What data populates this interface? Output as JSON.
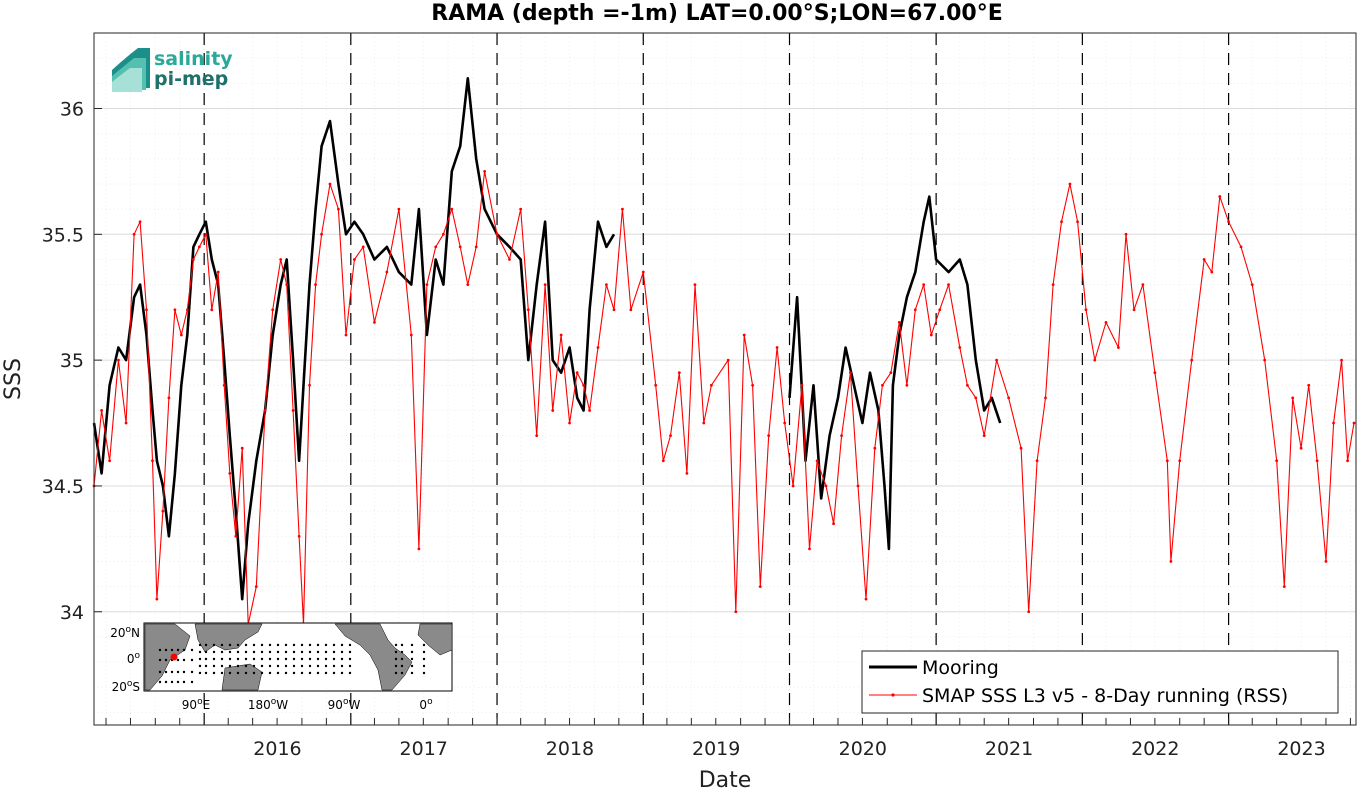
{
  "chart_data": {
    "type": "line",
    "title": "RAMA (depth =-1m) LAT=0.00°S;LON=67.00°E",
    "xlabel": "Date",
    "ylabel": "SSS",
    "xlim": [
      "2015-04-01",
      "2023-11-15"
    ],
    "ylim": [
      33.55,
      36.3
    ],
    "grid": true,
    "legend_position": "bottom-right",
    "x_ticks": [
      "2016",
      "2017",
      "2018",
      "2019",
      "2020",
      "2021",
      "2022",
      "2023"
    ],
    "y_ticks": [
      {
        "value": 34,
        "label": "34"
      },
      {
        "value": 34.5,
        "label": "34.5"
      },
      {
        "value": 35,
        "label": "35"
      },
      {
        "value": 35.5,
        "label": "35.5"
      },
      {
        "value": 36,
        "label": "36"
      }
    ],
    "year_boundaries": [
      "2016-01-01",
      "2017-01-01",
      "2018-01-01",
      "2019-01-01",
      "2020-01-01",
      "2021-01-01",
      "2022-01-01",
      "2023-01-01"
    ],
    "series": [
      {
        "name": "Mooring",
        "color": "#000000",
        "points": [
          [
            "2015-04-01",
            34.75
          ],
          [
            "2015-04-20",
            34.55
          ],
          [
            "2015-05-10",
            34.9
          ],
          [
            "2015-06-01",
            35.05
          ],
          [
            "2015-06-20",
            35.0
          ],
          [
            "2015-07-10",
            35.25
          ],
          [
            "2015-07-25",
            35.3
          ],
          [
            "2015-08-10",
            35.1
          ],
          [
            "2015-08-25",
            34.8
          ],
          [
            "2015-09-05",
            34.6
          ],
          [
            "2015-09-20",
            34.5
          ],
          [
            "2015-10-05",
            34.3
          ],
          [
            "2015-10-20",
            34.55
          ],
          [
            "2015-11-05",
            34.9
          ],
          [
            "2015-11-20",
            35.1
          ],
          [
            "2015-12-05",
            35.45
          ],
          [
            "2015-12-20",
            35.5
          ],
          [
            "2016-01-05",
            35.55
          ],
          [
            "2016-01-20",
            35.4
          ],
          [
            "2016-02-05",
            35.3
          ],
          [
            "2016-02-20",
            35.0
          ],
          [
            "2016-03-05",
            34.7
          ],
          [
            "2016-03-20",
            34.4
          ],
          [
            "2016-04-05",
            34.05
          ],
          [
            "2016-04-20",
            34.35
          ],
          [
            "2016-05-10",
            34.6
          ],
          [
            "2016-06-01",
            34.8
          ],
          [
            "2016-06-20",
            35.1
          ],
          [
            "2016-07-10",
            35.3
          ],
          [
            "2016-07-25",
            35.4
          ],
          [
            "2016-08-10",
            35.0
          ],
          [
            "2016-08-25",
            34.6
          ],
          [
            "2016-09-05",
            34.9
          ],
          [
            "2016-09-20",
            35.3
          ],
          [
            "2016-10-05",
            35.6
          ],
          [
            "2016-10-20",
            35.85
          ],
          [
            "2016-11-10",
            35.95
          ],
          [
            "2016-12-01",
            35.7
          ],
          [
            "2016-12-20",
            35.5
          ],
          [
            "2017-01-10",
            35.55
          ],
          [
            "2017-02-01",
            35.5
          ],
          [
            "2017-03-01",
            35.4
          ],
          [
            "2017-04-01",
            35.45
          ],
          [
            "2017-05-01",
            35.35
          ],
          [
            "2017-06-01",
            35.3
          ],
          [
            "2017-06-20",
            35.6
          ],
          [
            "2017-07-10",
            35.1
          ],
          [
            "2017-08-01",
            35.4
          ],
          [
            "2017-08-20",
            35.3
          ],
          [
            "2017-09-10",
            35.75
          ],
          [
            "2017-10-01",
            35.85
          ],
          [
            "2017-10-20",
            36.12
          ],
          [
            "2017-11-10",
            35.8
          ],
          [
            "2017-12-01",
            35.6
          ],
          [
            "2018-01-01",
            35.5
          ],
          [
            "2018-02-01",
            35.45
          ],
          [
            "2018-03-01",
            35.4
          ],
          [
            "2018-03-20",
            35.0
          ],
          [
            "2018-04-10",
            35.3
          ],
          [
            "2018-05-01",
            35.55
          ],
          [
            "2018-05-20",
            35.0
          ],
          [
            "2018-06-10",
            34.95
          ],
          [
            "2018-07-01",
            35.05
          ],
          [
            "2018-07-20",
            34.85
          ],
          [
            "2018-08-05",
            34.8
          ],
          [
            "2018-08-20",
            35.2
          ],
          [
            "2018-09-10",
            35.55
          ],
          [
            "2018-10-01",
            35.45
          ],
          [
            "2018-10-20",
            35.5
          ],
          [
            "2020-01-01",
            34.85
          ],
          [
            "2020-01-20",
            35.25
          ],
          [
            "2020-02-10",
            34.6
          ],
          [
            "2020-03-01",
            34.9
          ],
          [
            "2020-03-20",
            34.45
          ],
          [
            "2020-04-10",
            34.7
          ],
          [
            "2020-05-01",
            34.85
          ],
          [
            "2020-05-20",
            35.05
          ],
          [
            "2020-06-10",
            34.9
          ],
          [
            "2020-07-01",
            34.75
          ],
          [
            "2020-07-20",
            34.95
          ],
          [
            "2020-08-10",
            34.8
          ],
          [
            "2020-08-25",
            34.5
          ],
          [
            "2020-09-05",
            34.25
          ],
          [
            "2020-09-15",
            34.9
          ],
          [
            "2020-10-01",
            35.1
          ],
          [
            "2020-10-20",
            35.25
          ],
          [
            "2020-11-10",
            35.35
          ],
          [
            "2020-12-01",
            35.55
          ],
          [
            "2020-12-15",
            35.65
          ],
          [
            "2021-01-01",
            35.4
          ],
          [
            "2021-02-01",
            35.35
          ],
          [
            "2021-03-01",
            35.4
          ],
          [
            "2021-03-20",
            35.3
          ],
          [
            "2021-04-10",
            35.0
          ],
          [
            "2021-05-01",
            34.8
          ],
          [
            "2021-05-20",
            34.85
          ],
          [
            "2021-06-10",
            34.75
          ]
        ]
      },
      {
        "name": "SMAP SSS L3 v5 - 8-Day running (RSS)",
        "color": "#ff0000",
        "points": [
          [
            "2015-04-01",
            34.5
          ],
          [
            "2015-04-20",
            34.8
          ],
          [
            "2015-05-10",
            34.6
          ],
          [
            "2015-06-01",
            35.0
          ],
          [
            "2015-06-20",
            34.75
          ],
          [
            "2015-07-10",
            35.5
          ],
          [
            "2015-07-25",
            35.55
          ],
          [
            "2015-08-10",
            35.2
          ],
          [
            "2015-08-25",
            34.6
          ],
          [
            "2015-09-05",
            34.05
          ],
          [
            "2015-09-20",
            34.4
          ],
          [
            "2015-10-05",
            34.85
          ],
          [
            "2015-10-20",
            35.2
          ],
          [
            "2015-11-05",
            35.1
          ],
          [
            "2015-11-20",
            35.2
          ],
          [
            "2015-12-05",
            35.4
          ],
          [
            "2015-12-20",
            35.45
          ],
          [
            "2016-01-05",
            35.5
          ],
          [
            "2016-01-20",
            35.2
          ],
          [
            "2016-02-05",
            35.35
          ],
          [
            "2016-02-20",
            34.9
          ],
          [
            "2016-03-05",
            34.55
          ],
          [
            "2016-03-20",
            34.3
          ],
          [
            "2016-04-05",
            34.65
          ],
          [
            "2016-04-20",
            33.95
          ],
          [
            "2016-05-10",
            34.1
          ],
          [
            "2016-06-01",
            34.8
          ],
          [
            "2016-06-20",
            35.2
          ],
          [
            "2016-07-10",
            35.4
          ],
          [
            "2016-07-25",
            35.3
          ],
          [
            "2016-08-10",
            34.8
          ],
          [
            "2016-08-25",
            34.3
          ],
          [
            "2016-09-05",
            33.95
          ],
          [
            "2016-09-20",
            34.9
          ],
          [
            "2016-10-05",
            35.3
          ],
          [
            "2016-10-20",
            35.5
          ],
          [
            "2016-11-10",
            35.7
          ],
          [
            "2016-12-01",
            35.6
          ],
          [
            "2016-12-20",
            35.1
          ],
          [
            "2017-01-10",
            35.4
          ],
          [
            "2017-02-01",
            35.45
          ],
          [
            "2017-03-01",
            35.15
          ],
          [
            "2017-04-01",
            35.35
          ],
          [
            "2017-05-01",
            35.6
          ],
          [
            "2017-06-01",
            35.1
          ],
          [
            "2017-06-20",
            34.25
          ],
          [
            "2017-07-10",
            35.3
          ],
          [
            "2017-08-01",
            35.45
          ],
          [
            "2017-08-20",
            35.5
          ],
          [
            "2017-09-10",
            35.6
          ],
          [
            "2017-10-01",
            35.45
          ],
          [
            "2017-10-20",
            35.3
          ],
          [
            "2017-11-10",
            35.45
          ],
          [
            "2017-12-01",
            35.75
          ],
          [
            "2018-01-01",
            35.5
          ],
          [
            "2018-02-01",
            35.4
          ],
          [
            "2018-03-01",
            35.6
          ],
          [
            "2018-03-20",
            35.2
          ],
          [
            "2018-04-10",
            34.7
          ],
          [
            "2018-05-01",
            35.3
          ],
          [
            "2018-05-20",
            34.8
          ],
          [
            "2018-06-10",
            35.1
          ],
          [
            "2018-07-01",
            34.75
          ],
          [
            "2018-07-20",
            34.95
          ],
          [
            "2018-08-05",
            34.9
          ],
          [
            "2018-08-20",
            34.8
          ],
          [
            "2018-09-10",
            35.05
          ],
          [
            "2018-10-01",
            35.3
          ],
          [
            "2018-10-20",
            35.2
          ],
          [
            "2018-11-10",
            35.6
          ],
          [
            "2018-12-01",
            35.2
          ],
          [
            "2019-01-01",
            35.35
          ],
          [
            "2019-02-01",
            34.9
          ],
          [
            "2019-02-20",
            34.6
          ],
          [
            "2019-03-10",
            34.7
          ],
          [
            "2019-04-01",
            34.95
          ],
          [
            "2019-04-20",
            34.55
          ],
          [
            "2019-05-10",
            35.3
          ],
          [
            "2019-06-01",
            34.75
          ],
          [
            "2019-06-20",
            34.9
          ],
          [
            "2019-08-01",
            35.0
          ],
          [
            "2019-08-20",
            34.0
          ],
          [
            "2019-09-10",
            35.1
          ],
          [
            "2019-10-01",
            34.9
          ],
          [
            "2019-10-20",
            34.1
          ],
          [
            "2019-11-10",
            34.7
          ],
          [
            "2019-12-01",
            35.05
          ],
          [
            "2019-12-20",
            34.75
          ],
          [
            "2020-01-10",
            34.5
          ],
          [
            "2020-02-01",
            34.9
          ],
          [
            "2020-02-20",
            34.25
          ],
          [
            "2020-03-10",
            34.6
          ],
          [
            "2020-04-01",
            34.5
          ],
          [
            "2020-04-20",
            34.35
          ],
          [
            "2020-05-10",
            34.7
          ],
          [
            "2020-06-01",
            34.95
          ],
          [
            "2020-06-20",
            34.5
          ],
          [
            "2020-07-10",
            34.05
          ],
          [
            "2020-08-01",
            34.65
          ],
          [
            "2020-08-20",
            34.9
          ],
          [
            "2020-09-10",
            34.95
          ],
          [
            "2020-10-01",
            35.15
          ],
          [
            "2020-10-20",
            34.9
          ],
          [
            "2020-11-10",
            35.2
          ],
          [
            "2020-12-01",
            35.3
          ],
          [
            "2020-12-20",
            35.1
          ],
          [
            "2021-01-10",
            35.2
          ],
          [
            "2021-02-01",
            35.3
          ],
          [
            "2021-03-01",
            35.05
          ],
          [
            "2021-03-20",
            34.9
          ],
          [
            "2021-04-10",
            34.85
          ],
          [
            "2021-05-01",
            34.7
          ],
          [
            "2021-06-01",
            35.0
          ],
          [
            "2021-07-01",
            34.85
          ],
          [
            "2021-08-01",
            34.65
          ],
          [
            "2021-08-20",
            34.0
          ],
          [
            "2021-09-10",
            34.6
          ],
          [
            "2021-10-01",
            34.85
          ],
          [
            "2021-10-20",
            35.3
          ],
          [
            "2021-11-10",
            35.55
          ],
          [
            "2021-12-01",
            35.7
          ],
          [
            "2021-12-20",
            35.55
          ],
          [
            "2022-01-10",
            35.2
          ],
          [
            "2022-02-01",
            35.0
          ],
          [
            "2022-03-01",
            35.15
          ],
          [
            "2022-04-01",
            35.05
          ],
          [
            "2022-04-20",
            35.5
          ],
          [
            "2022-05-10",
            35.2
          ],
          [
            "2022-06-01",
            35.3
          ],
          [
            "2022-07-01",
            34.95
          ],
          [
            "2022-08-01",
            34.6
          ],
          [
            "2022-08-10",
            34.2
          ],
          [
            "2022-09-01",
            34.6
          ],
          [
            "2022-10-01",
            35.0
          ],
          [
            "2022-11-01",
            35.4
          ],
          [
            "2022-11-20",
            35.35
          ],
          [
            "2022-12-10",
            35.65
          ],
          [
            "2023-01-01",
            35.55
          ],
          [
            "2023-02-01",
            35.45
          ],
          [
            "2023-03-01",
            35.3
          ],
          [
            "2023-04-01",
            35.0
          ],
          [
            "2023-05-01",
            34.6
          ],
          [
            "2023-05-20",
            34.1
          ],
          [
            "2023-06-10",
            34.85
          ],
          [
            "2023-07-01",
            34.65
          ],
          [
            "2023-07-20",
            34.9
          ],
          [
            "2023-08-10",
            34.6
          ],
          [
            "2023-09-01",
            34.2
          ],
          [
            "2023-09-20",
            34.75
          ],
          [
            "2023-10-10",
            35.0
          ],
          [
            "2023-10-25",
            34.6
          ],
          [
            "2023-11-10",
            34.75
          ]
        ]
      }
    ]
  },
  "logo": {
    "line1": "salinity",
    "line2": "pi-mep"
  },
  "inset_map": {
    "lat_labels": [
      {
        "text": "20",
        "sup": "o",
        "hemi": "N"
      },
      {
        "text": "0",
        "sup": "o",
        "hemi": ""
      },
      {
        "text": "20",
        "sup": "o",
        "hemi": "S"
      }
    ],
    "lon_labels": [
      {
        "text": "90",
        "sup": "o",
        "hemi": "E"
      },
      {
        "text": "180",
        "sup": "o",
        "hemi": "W"
      },
      {
        "text": "90",
        "sup": "o",
        "hemi": "W"
      },
      {
        "text": "0",
        "sup": "o",
        "hemi": ""
      }
    ],
    "ocean_color": "#ffffff",
    "land_color": "#8a8a8a",
    "marker_color": "#ff0000"
  }
}
